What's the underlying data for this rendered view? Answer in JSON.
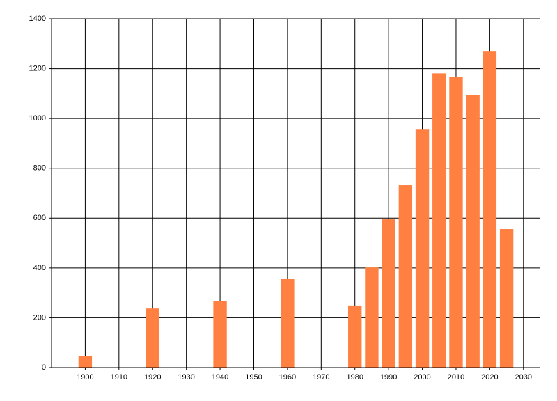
{
  "chart_data": {
    "type": "bar",
    "x": [
      1900,
      1920,
      1940,
      1960,
      1980,
      1985,
      1990,
      1995,
      2000,
      2005,
      2010,
      2015,
      2020,
      2025
    ],
    "values": [
      45,
      237,
      268,
      355,
      249,
      402,
      595,
      732,
      955,
      1181,
      1168,
      1095,
      1271,
      556
    ],
    "color": "#ff8040",
    "xlim": [
      1890,
      2035
    ],
    "xticks": [
      1900,
      1910,
      1920,
      1930,
      1940,
      1950,
      1960,
      1970,
      1980,
      1990,
      2000,
      2010,
      2020,
      2030
    ],
    "ylim": [
      0,
      1400
    ],
    "yticks": [
      0,
      200,
      400,
      600,
      800,
      1000,
      1200,
      1400
    ],
    "grid": true
  }
}
